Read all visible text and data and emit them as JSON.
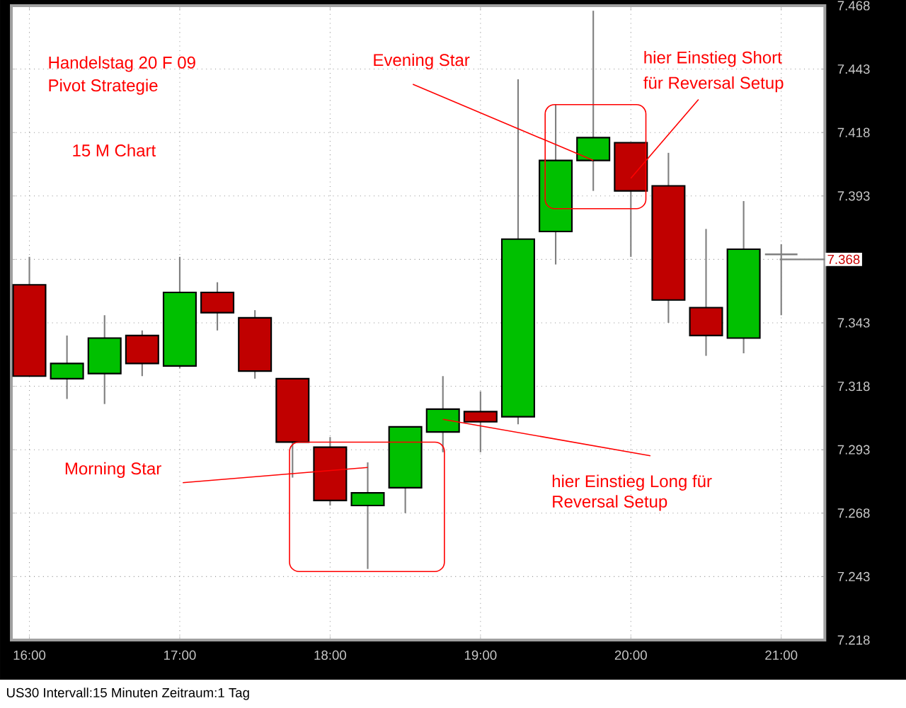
{
  "chart_data": {
    "type": "candlestick",
    "x": [
      16.0,
      16.25,
      16.5,
      16.75,
      17.0,
      17.25,
      17.5,
      17.75,
      18.0,
      18.25,
      18.5,
      18.75,
      19.0,
      19.25,
      19.5,
      19.75,
      20.0,
      20.25,
      20.5,
      20.75,
      21.0
    ],
    "ohlc": [
      [
        7358,
        7369,
        7322,
        7322
      ],
      [
        7321,
        7338,
        7313,
        7327
      ],
      [
        7323,
        7346,
        7311,
        7337
      ],
      [
        7338,
        7340,
        7322,
        7327
      ],
      [
        7326,
        7369,
        7325,
        7355
      ],
      [
        7355,
        7359,
        7340,
        7347
      ],
      [
        7345,
        7348,
        7321,
        7324
      ],
      [
        7321,
        7321,
        7282,
        7296
      ],
      [
        7294,
        7298,
        7271,
        7273
      ],
      [
        7271,
        7288,
        7246,
        7276
      ],
      [
        7278,
        7302,
        7268,
        7302
      ],
      [
        7300,
        7322,
        7292,
        7309
      ],
      [
        7308,
        7316,
        7292,
        7304
      ],
      [
        7306,
        7439,
        7303,
        7376
      ],
      [
        7379,
        7429,
        7366,
        7407
      ],
      [
        7407,
        7466,
        7395,
        7416
      ],
      [
        7414,
        7414,
        7369,
        7395
      ],
      [
        7397,
        7410,
        7343,
        7352
      ],
      [
        7349,
        7380,
        7330,
        7338
      ],
      [
        7337,
        7391,
        7331,
        7372
      ],
      [
        7370,
        7374,
        7346,
        7370
      ]
    ],
    "colors": [
      "#c00000",
      "#00c000",
      "#00c000",
      "#c00000",
      "#00c000",
      "#c00000",
      "#c00000",
      "#c00000",
      "#c00000",
      "#00c000",
      "#00c000",
      "#00c000",
      "#c00000",
      "#00c000",
      "#00c000",
      "#00c000",
      "#c00000",
      "#c00000",
      "#c00000",
      "#00c000",
      "#808080"
    ],
    "xlim": [
      15.88,
      21.29
    ],
    "xticks": [
      {
        "value": 16,
        "label": "16:00"
      },
      {
        "value": 17,
        "label": "17:00"
      },
      {
        "value": 18,
        "label": "18:00"
      },
      {
        "value": 19,
        "label": "19:00"
      },
      {
        "value": 20,
        "label": "20:00"
      },
      {
        "value": 21,
        "label": "21:00"
      }
    ],
    "ylim": [
      7218,
      7468
    ],
    "yticks": [
      {
        "value": 7218,
        "label": "7.218"
      },
      {
        "value": 7243,
        "label": "7.243"
      },
      {
        "value": 7268,
        "label": "7.268"
      },
      {
        "value": 7293,
        "label": "7.293"
      },
      {
        "value": 7318,
        "label": "7.318"
      },
      {
        "value": 7343,
        "label": "7.343"
      },
      {
        "value": 7368,
        "label": null
      },
      {
        "value": 7393,
        "label": "7.393"
      },
      {
        "value": 7418,
        "label": "7.418"
      },
      {
        "value": 7443,
        "label": "7.443"
      },
      {
        "value": 7468,
        "label": "7.468"
      }
    ],
    "grid": true,
    "ref_lines": [
      {
        "axis": "y",
        "value": 7368,
        "label": "7.368"
      }
    ],
    "annotations": [
      "Handelstag 20 F 09",
      "Pivot Strategie",
      "15 M Chart",
      {
        "text": "Evening Star",
        "x": 19.75,
        "y": 7407
      },
      "hier Einstieg Short",
      {
        "text": "für Reversal Setup",
        "x": 20.0,
        "y": 7400
      },
      {
        "text": "Morning Star",
        "x": 18.25,
        "y": 7286
      },
      {
        "text": "hier Einstieg Long für",
        "x": 18.75,
        "y": 7305
      },
      "Reversal Setup",
      "US30   Intervall:15 Minuten   Zeitraum:1 Tag"
    ]
  }
}
